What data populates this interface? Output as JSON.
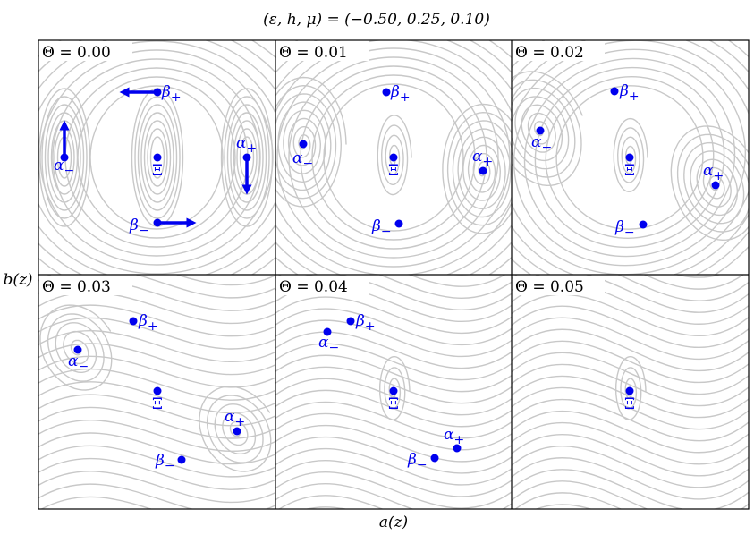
{
  "figure": {
    "title": "(ε, h, μ) = (−0.50, 0.25, 0.10)",
    "xlabel": "a(z)",
    "ylabel": "b(z)",
    "colors": {
      "stream": "#c8c8c8",
      "point": "#0000ee",
      "frame": "#000000"
    }
  },
  "panels": [
    {
      "theta_label": "Θ = 0.00",
      "points": [
        {
          "label": "β+",
          "sym": "β",
          "sub": "+"
        },
        {
          "label": "α−",
          "sym": "α",
          "sub": "−"
        },
        {
          "label": "Ξ",
          "sym": "Ξ",
          "sub": ""
        },
        {
          "label": "α+",
          "sym": "α",
          "sub": "+"
        },
        {
          "label": "β−",
          "sym": "β",
          "sub": "−"
        }
      ]
    },
    {
      "theta_label": "Θ = 0.01",
      "points": [
        {
          "label": "β+",
          "sym": "β",
          "sub": "+"
        },
        {
          "label": "α−",
          "sym": "α",
          "sub": "−"
        },
        {
          "label": "Ξ",
          "sym": "Ξ",
          "sub": ""
        },
        {
          "label": "α+",
          "sym": "α",
          "sub": "+"
        },
        {
          "label": "β−",
          "sym": "β",
          "sub": "−"
        }
      ]
    },
    {
      "theta_label": "Θ = 0.02",
      "points": [
        {
          "label": "β+",
          "sym": "β",
          "sub": "+"
        },
        {
          "label": "α−",
          "sym": "α",
          "sub": "−"
        },
        {
          "label": "Ξ",
          "sym": "Ξ",
          "sub": ""
        },
        {
          "label": "α+",
          "sym": "α",
          "sub": "+"
        },
        {
          "label": "β−",
          "sym": "β",
          "sub": "−"
        }
      ]
    },
    {
      "theta_label": "Θ = 0.03",
      "points": [
        {
          "label": "β+",
          "sym": "β",
          "sub": "+"
        },
        {
          "label": "α−",
          "sym": "α",
          "sub": "−"
        },
        {
          "label": "Ξ",
          "sym": "Ξ",
          "sub": ""
        },
        {
          "label": "α+",
          "sym": "α",
          "sub": "+"
        },
        {
          "label": "β−",
          "sym": "β",
          "sub": "−"
        }
      ]
    },
    {
      "theta_label": "Θ = 0.04",
      "points": [
        {
          "label": "β+",
          "sym": "β",
          "sub": "+"
        },
        {
          "label": "α−",
          "sym": "α",
          "sub": "−"
        },
        {
          "label": "Ξ",
          "sym": "Ξ",
          "sub": ""
        },
        {
          "label": "α+",
          "sym": "α",
          "sub": "+"
        },
        {
          "label": "β−",
          "sym": "β",
          "sub": "−"
        }
      ]
    },
    {
      "theta_label": "Θ = 0.05",
      "points": [
        {
          "label": "Ξ",
          "sym": "Ξ",
          "sub": ""
        }
      ]
    }
  ]
}
